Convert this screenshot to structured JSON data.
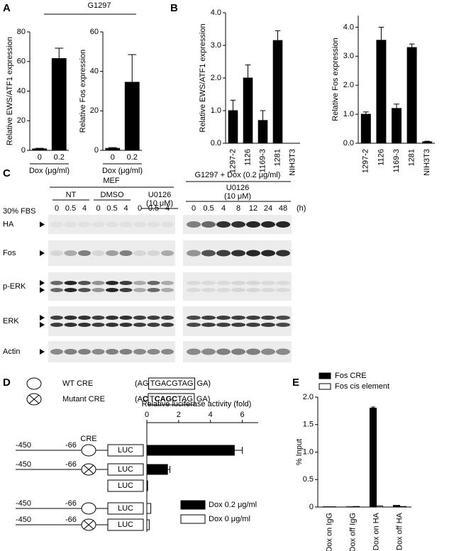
{
  "panels": [
    "A",
    "B",
    "C",
    "D",
    "E"
  ],
  "panel_a_header": "G1297",
  "chart_data": [
    {
      "type": "bar",
      "ylabel": "Relative EWS/ATF1 expression",
      "xlabel": "Dox (μg/ml)",
      "categories": [
        "0",
        "0.2"
      ],
      "values": [
        1,
        62
      ],
      "errors": [
        0.4,
        7
      ],
      "color": "#000000",
      "ylim": [
        0,
        80
      ],
      "yticks": [
        0,
        20,
        40,
        60,
        80
      ]
    },
    {
      "type": "bar",
      "ylabel": "Relative Fos expression",
      "xlabel": "Dox (μg/ml)",
      "categories": [
        "0",
        "0.2"
      ],
      "values": [
        1,
        34.5
      ],
      "errors": [
        0.4,
        14
      ],
      "color": "#000000",
      "ylim": [
        0,
        60
      ],
      "yticks": [
        0,
        20,
        40,
        60
      ]
    },
    {
      "type": "bar",
      "ylabel": "Relative EWS/ATF1 expression",
      "categories": [
        "1297-2",
        "1126",
        "1169-3",
        "1281",
        "NIH3T3"
      ],
      "values": [
        1.0,
        2.0,
        0.7,
        3.15,
        0
      ],
      "errors": [
        0.32,
        0.4,
        0.3,
        0.3,
        0
      ],
      "color": "#000000",
      "ylim": [
        0,
        4.0
      ],
      "yticks": [
        {
          "value": 0,
          "label": "0.0"
        },
        {
          "value": 1,
          "label": "1.0"
        },
        {
          "value": 2,
          "label": "2.0"
        },
        {
          "value": 3,
          "label": "3.0"
        },
        {
          "value": 4,
          "label": "4.0"
        }
      ]
    },
    {
      "type": "bar",
      "ylabel": "Relative Fos expression",
      "categories": [
        "1297-2",
        "1126",
        "1169-3",
        "1281",
        "NIH3T3"
      ],
      "values": [
        1.0,
        3.55,
        1.2,
        3.3,
        0.05
      ],
      "errors": [
        0.08,
        0.45,
        0.15,
        0.12,
        0.02
      ],
      "color": "#000000",
      "ylim": [
        0,
        4.4
      ],
      "yticks": [
        {
          "value": 0,
          "label": "0.0"
        },
        {
          "value": 1,
          "label": "1.0"
        },
        {
          "value": 2,
          "label": "2.0"
        },
        {
          "value": 3,
          "label": "3.0"
        },
        {
          "value": 4,
          "label": "4.0"
        }
      ]
    },
    {
      "type": "hbar",
      "xlabel": "Relative luciferase activity (fold)",
      "categories": [
        null,
        null,
        null,
        null,
        null
      ],
      "series": [
        {
          "name": "Dox 0.2 μg/ml",
          "color": "#000000",
          "values": [
            5.5,
            1.3,
            0.05,
            null,
            null
          ],
          "errors": [
            0.5,
            0.15,
            null,
            null,
            null
          ]
        },
        {
          "name": "Dox 0 μg/ml",
          "color": "#ffffff",
          "values": [
            null,
            null,
            null,
            0.25,
            0.15
          ]
        }
      ],
      "xlim": [
        0,
        7
      ],
      "xticks": [
        0,
        2,
        4,
        6
      ],
      "legend": "lower right"
    },
    {
      "type": "bar",
      "ylabel": "% Input",
      "categories": [
        "Dox on IgG",
        "Dox off IgG",
        "Dox on HA",
        "Dox off HA"
      ],
      "series": [
        {
          "name": "Fos CRE",
          "color": "#000000",
          "values": [
            0.005,
            0.005,
            1.8,
            0.03
          ],
          "errors": [
            null,
            null,
            0.02,
            null
          ]
        },
        {
          "name": "Fos cis element",
          "color": "#ffffff",
          "values": [
            0.005,
            0.01,
            0.02,
            0.01
          ]
        }
      ],
      "ylim": [
        0,
        2.0
      ],
      "yticks": [
        0,
        0.5,
        {
          "value": 1,
          "label": "1.0"
        },
        1.5,
        {
          "value": 2,
          "label": "2.0"
        }
      ],
      "legend": "upper left"
    }
  ],
  "blot": {
    "left_header": "MEF",
    "left_groups": [
      [
        "NT"
      ],
      [
        "DMSO"
      ],
      [
        "U0126",
        "(10 μM)"
      ]
    ],
    "right_header": "G1297 + Dox (0.2 μg/ml)",
    "right_group": [
      "U0126",
      "(10 μM)"
    ],
    "left_times": [
      "0",
      "0.5",
      "4",
      "0",
      "0.5",
      "4",
      "0",
      "0.5",
      "4"
    ],
    "right_times": [
      "0",
      "0.5",
      "4",
      "8",
      "12",
      "24",
      "48"
    ],
    "unit": "(h)",
    "serum": "30% FBS",
    "rows": [
      "HA",
      "Fos",
      "p-ERK",
      "ERK",
      "Actin"
    ]
  },
  "constructs": {
    "wt_label": "WT CRE",
    "mutant_label": "Mutant CRE",
    "wt_sequence": [
      "(AG",
      "TGACGTAG",
      "GA)"
    ],
    "mutant_sequence": [
      "(A",
      "C",
      "T",
      "CAGC",
      "TAG",
      "GA)"
    ],
    "rows": [
      {
        "start": "-450",
        "end": "-66",
        "element": "CRE",
        "reporter": "LUC"
      },
      {
        "start": "-450",
        "end": "-66",
        "reporter": "LUC"
      },
      {
        "reporter": "LUC"
      },
      {
        "start": "-450",
        "end": "-66",
        "reporter": "LUC"
      },
      {
        "start": "-450",
        "end": "-66",
        "reporter": "LUC"
      }
    ]
  }
}
